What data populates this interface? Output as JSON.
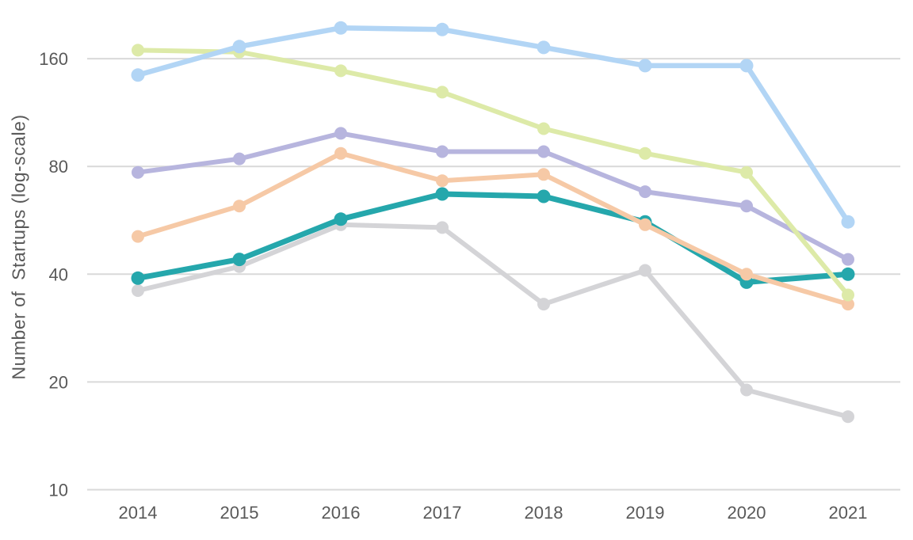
{
  "page": {
    "background": "#FFFFFF"
  },
  "chart_data": {
    "type": "line",
    "title": "",
    "ylabel": "Number of  Startups (log-scale)",
    "xlabel": "",
    "x": [
      "2014",
      "2015",
      "2016",
      "2017",
      "2018",
      "2019",
      "2020",
      "2021"
    ],
    "yscale": "log2",
    "yticks": [
      10,
      20,
      40,
      80,
      160
    ],
    "ylim": [
      10,
      210
    ],
    "grid": "horizontal-only",
    "legend": "none",
    "axis_text_color": "#595959",
    "gridline_color": "#D9D9D9",
    "series": [
      {
        "name": "gray",
        "color": "#D4D4D7",
        "emphasized": false,
        "line_width": 6,
        "marker_radius": 8,
        "values": [
          36,
          42,
          55,
          54,
          33,
          41,
          19,
          16
        ]
      },
      {
        "name": "teal",
        "color": "#25A7AC",
        "emphasized": true,
        "line_width": 7,
        "marker_radius": 8.5,
        "values": [
          39,
          44,
          57,
          67,
          66,
          56,
          38,
          40
        ]
      },
      {
        "name": "peach",
        "color": "#F6C9A6",
        "emphasized": false,
        "line_width": 6,
        "marker_radius": 8,
        "values": [
          51,
          62,
          87,
          73,
          76,
          55,
          40,
          33
        ]
      },
      {
        "name": "purple",
        "color": "#B7B5DE",
        "emphasized": false,
        "line_width": 6,
        "marker_radius": 8,
        "values": [
          77,
          84,
          99,
          88,
          88,
          68,
          62,
          44
        ]
      },
      {
        "name": "green",
        "color": "#DDEAA8",
        "emphasized": false,
        "line_width": 6,
        "marker_radius": 8,
        "values": [
          169,
          167,
          148,
          129,
          102,
          87,
          77,
          35
        ]
      },
      {
        "name": "blue",
        "color": "#B2D5F5",
        "emphasized": false,
        "line_width": 6.5,
        "marker_radius": 8.5,
        "values": [
          144,
          173,
          195,
          193,
          172,
          153,
          153,
          56
        ]
      }
    ]
  }
}
